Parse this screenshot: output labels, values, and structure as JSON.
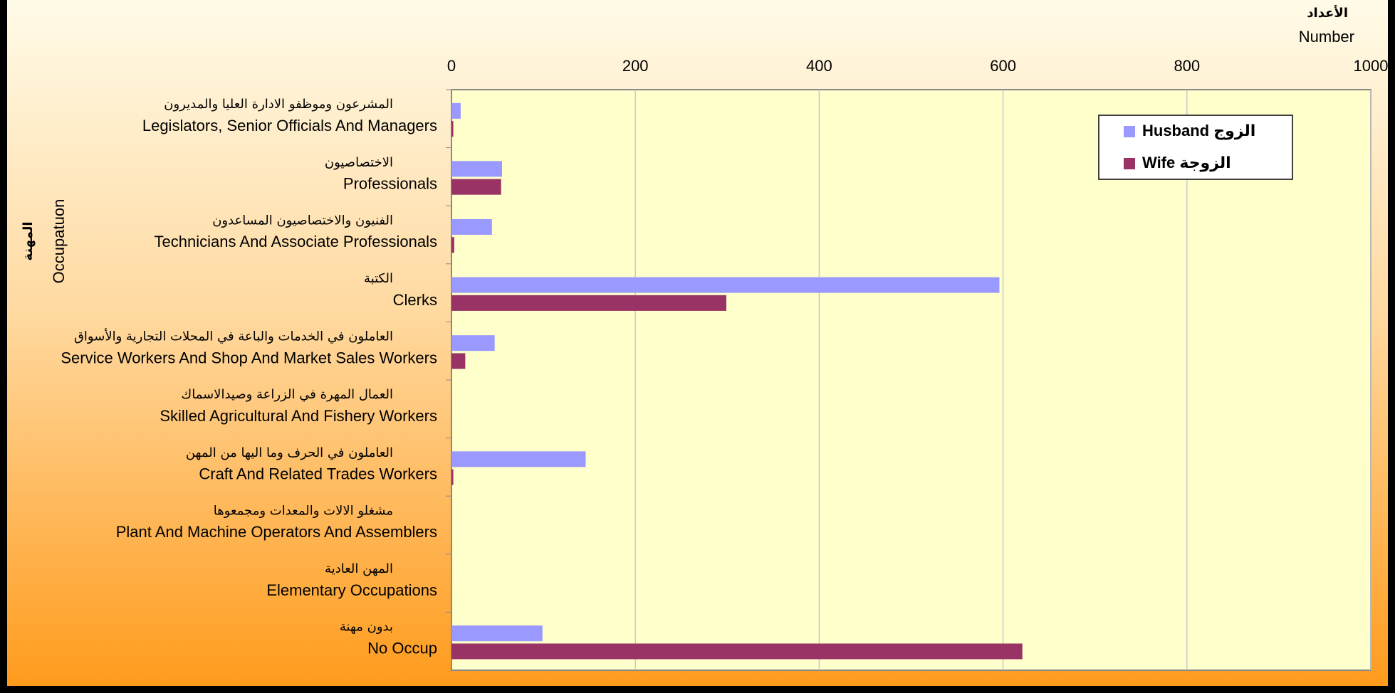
{
  "chart_data": {
    "type": "bar",
    "orientation": "horizontal",
    "x_axis_title_ar": "الأعداد",
    "x_axis_title": "Number",
    "y_axis_title_ar": "المهنة",
    "y_axis_title": "Occupatuon",
    "categories_ar": [
      "المشرعون وموظفو الادارة العليا والمديرون",
      "الاختصاصيون",
      "الفنيون والاختصاصيون المساعدون",
      "الكتبة",
      "العاملون في الخدمات والباعة في المحلات التجارية والأسواق",
      "العمال المهرة في الزراعة وصيدالاسماك",
      "العاملون في الحرف وما اليها من المهن",
      "مشغلو الالات والمعدات ومجمعوها",
      "المهن العادية",
      "بدون مهنة"
    ],
    "categories": [
      "Legislators, Senior Officials And Managers",
      "Professionals",
      "Technicians And Associate Professionals",
      "Clerks",
      "Service Workers And Shop And Market Sales Workers",
      "Skilled Agricultural And Fishery Workers",
      "Craft And Related Trades Workers",
      "Plant And Machine Operators And Assemblers",
      "Elementary Occupations",
      "No Occup"
    ],
    "series": [
      {
        "name": "Husband الزوج",
        "color": "#9999ff",
        "values": [
          10,
          55,
          44,
          596,
          47,
          0,
          146,
          0,
          0,
          99
        ]
      },
      {
        "name": "Wife الزوجة",
        "color": "#993366",
        "values": [
          2,
          54,
          3,
          299,
          15,
          0,
          2,
          0,
          0,
          621
        ]
      }
    ],
    "xlim": [
      0,
      1000
    ],
    "xticks": [
      0,
      200,
      400,
      600,
      800,
      1000
    ],
    "grid": true,
    "legend": "upper right"
  }
}
